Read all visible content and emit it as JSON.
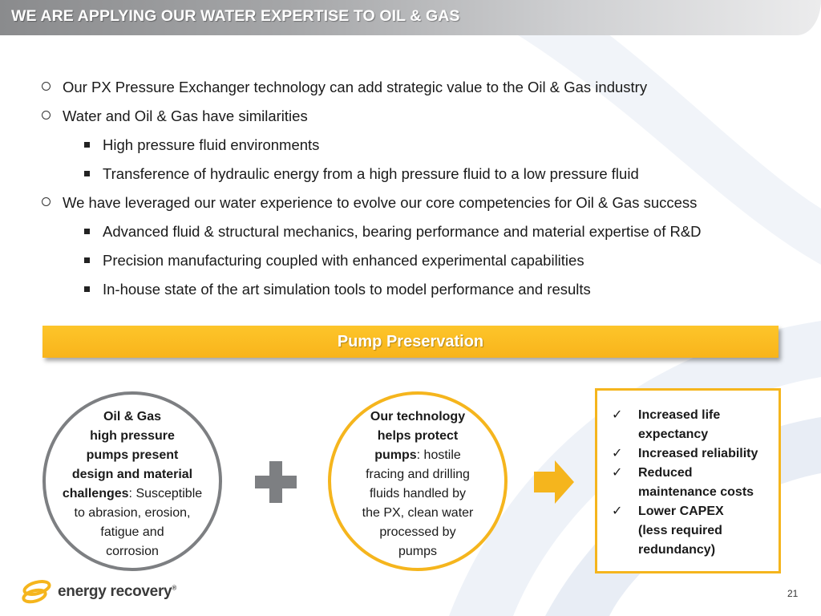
{
  "title": "WE ARE APPLYING OUR WATER EXPERTISE TO OIL & GAS",
  "bullets": [
    {
      "level": 1,
      "text": "Our PX Pressure Exchanger technology can add strategic value to the Oil & Gas industry"
    },
    {
      "level": 1,
      "text": "Water and Oil & Gas have similarities"
    },
    {
      "level": 2,
      "text": "High pressure fluid environments"
    },
    {
      "level": 2,
      "text": "Transference of hydraulic energy from a high pressure fluid to a low pressure fluid"
    },
    {
      "level": 1,
      "text": "We have leveraged our water experience to evolve our core competencies for Oil & Gas success"
    },
    {
      "level": 2,
      "text": "Advanced fluid & structural mechanics, bearing performance and material expertise of R&D"
    },
    {
      "level": 2,
      "text": "Precision manufacturing coupled with enhanced experimental capabilities"
    },
    {
      "level": 2,
      "text": "In-house state of the art simulation tools to model performance and results"
    }
  ],
  "banner": {
    "label": "Pump Preservation"
  },
  "circle_left": {
    "line1": "Oil & Gas",
    "line2": "high pressure",
    "line3": "pumps present",
    "line4": "design and material",
    "line5_bold": "challenges",
    "line5_rest": ": Susceptible",
    "line6": "to abrasion, erosion,",
    "line7": "fatigue and",
    "line8": "corrosion"
  },
  "circle_right": {
    "line1": "Our technology",
    "line2": "helps protect",
    "line3_bold": "pumps",
    "line3_rest": ": hostile",
    "line4": "fracing and drilling",
    "line5": "fluids handled by",
    "line6": "the PX, clean water",
    "line7": "processed by",
    "line8": "pumps"
  },
  "benefits": {
    "check": "✓",
    "b1_line1": "Increased life",
    "b1_line2": "expectancy",
    "b2_line1": "Increased reliability",
    "b3_line1": "Reduced",
    "b3_line2": "maintenance costs",
    "b4_line1": "Lower CAPEX",
    "b4_line2": "(less required",
    "b4_line3": "redundancy)"
  },
  "logo": {
    "name": "energy recovery",
    "trademark": "®"
  },
  "page_number": "21",
  "colors": {
    "accent_yellow": "#f5b51d",
    "gray": "#7d7f82",
    "watermark_blue": "#eef2f8"
  },
  "icons": {
    "plus": "plus-icon",
    "arrow": "arrow-right-icon",
    "check": "check-icon",
    "bullet_l1": "hollow-circle-bullet",
    "bullet_l2": "square-bullet"
  }
}
